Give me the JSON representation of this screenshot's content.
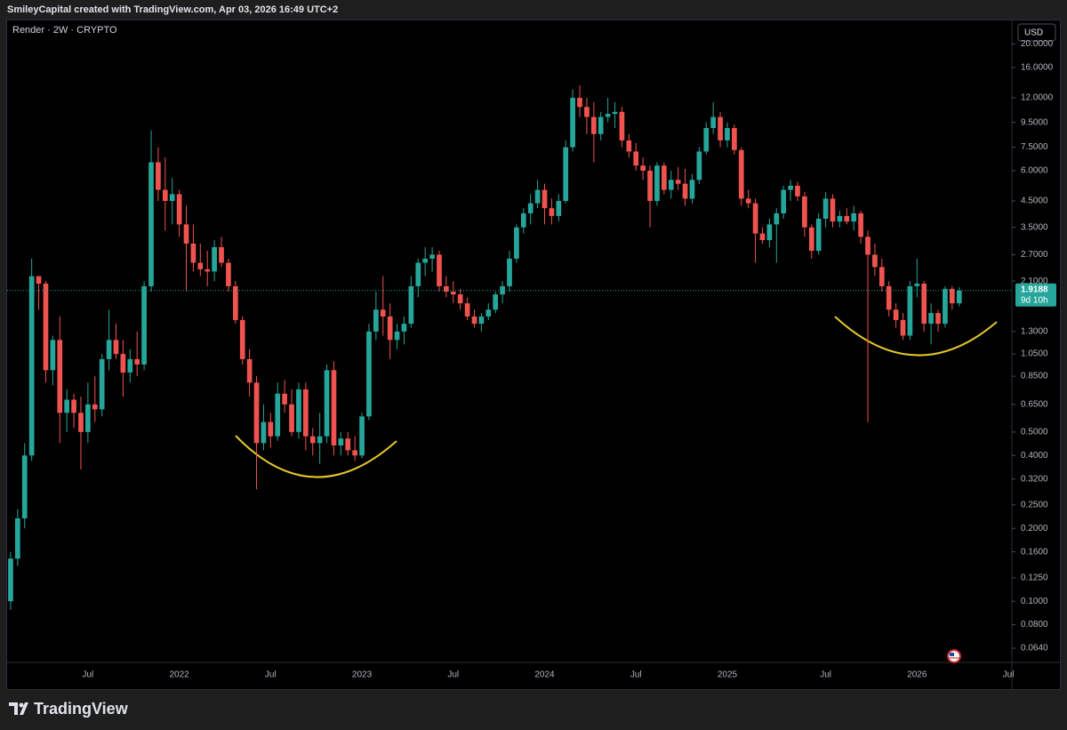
{
  "header": {
    "credit": "SmileyCapital created with TradingView.com, Apr 03, 2026 16:49 UTC+2"
  },
  "currency": "USD",
  "footer": {
    "brand": "TradingView"
  },
  "chart_data": {
    "type": "candlestick",
    "title": "Render · 2W · CRYPTO",
    "log_scale": true,
    "grid": false,
    "up_color": "#26a69a",
    "down_color": "#ef5350",
    "countdown": "9d 10h",
    "ylim": [
      0.0559,
      24.0
    ],
    "yticks": [
      {
        "value": 20,
        "label": "20.0000"
      },
      {
        "value": 16,
        "label": "16.0000"
      },
      {
        "value": 12,
        "label": "12.0000"
      },
      {
        "value": 9.5,
        "label": "9.5000"
      },
      {
        "value": 7.5,
        "label": "7.5000"
      },
      {
        "value": 6,
        "label": "6.0000"
      },
      {
        "value": 4.5,
        "label": "4.5000"
      },
      {
        "value": 3.5,
        "label": "3.5000"
      },
      {
        "value": 2.7,
        "label": "2.7000"
      },
      {
        "value": 2.1,
        "label": "2.1000"
      },
      {
        "value": 1.3,
        "label": "1.3000"
      },
      {
        "value": 1.05,
        "label": "1.0500"
      },
      {
        "value": 0.85,
        "label": "0.8500"
      },
      {
        "value": 0.65,
        "label": "0.6500"
      },
      {
        "value": 0.5,
        "label": "0.5000"
      },
      {
        "value": 0.4,
        "label": "0.4000"
      },
      {
        "value": 0.32,
        "label": "0.3200"
      },
      {
        "value": 0.25,
        "label": "0.2500"
      },
      {
        "value": 0.2,
        "label": "0.2000"
      },
      {
        "value": 0.16,
        "label": "0.1600"
      },
      {
        "value": 0.125,
        "label": "0.1250"
      },
      {
        "value": 0.1,
        "label": "0.1000"
      },
      {
        "value": 0.08,
        "label": "0.0800"
      },
      {
        "value": 0.064,
        "label": "0.0640"
      }
    ],
    "categories": [
      null,
      null,
      null,
      null,
      null,
      null,
      null,
      null,
      null,
      null,
      null,
      "Jul",
      null,
      null,
      null,
      null,
      null,
      null,
      null,
      null,
      null,
      null,
      null,
      null,
      "2022",
      null,
      null,
      null,
      null,
      null,
      null,
      null,
      null,
      null,
      null,
      null,
      null,
      "Jul",
      null,
      null,
      null,
      null,
      null,
      null,
      null,
      null,
      null,
      null,
      null,
      null,
      "2023",
      null,
      null,
      null,
      null,
      null,
      null,
      null,
      null,
      null,
      null,
      null,
      null,
      "Jul",
      null,
      null,
      null,
      null,
      null,
      null,
      null,
      null,
      null,
      null,
      null,
      null,
      "2024",
      null,
      null,
      null,
      null,
      null,
      null,
      null,
      null,
      null,
      null,
      null,
      null,
      "Jul",
      null,
      null,
      null,
      null,
      null,
      null,
      null,
      null,
      null,
      null,
      null,
      null,
      "2025",
      null,
      null,
      null,
      null,
      null,
      null,
      null,
      null,
      null,
      null,
      null,
      null,
      null,
      "Jul",
      null,
      null,
      null,
      null,
      null,
      null,
      null,
      null,
      null,
      null,
      null,
      null,
      "2026",
      null,
      null,
      null,
      null,
      null,
      null,
      null,
      null,
      null,
      null,
      null,
      null,
      "Jul"
    ],
    "open": [
      0.1,
      0.15,
      0.22,
      0.4,
      2.2,
      2.05,
      0.9,
      1.2,
      0.6,
      0.68,
      0.6,
      0.5,
      0.65,
      0.62,
      1.0,
      1.2,
      1.05,
      0.88,
      1.0,
      0.95,
      2.0,
      6.5,
      5.0,
      4.5,
      4.8,
      3.6,
      3.0,
      2.5,
      2.35,
      2.3,
      2.9,
      2.5,
      2.0,
      1.45,
      1.0,
      0.8,
      0.45,
      0.55,
      0.48,
      0.72,
      0.65,
      0.5,
      0.75,
      0.48,
      0.45,
      0.48,
      0.9,
      0.44,
      0.47,
      0.42,
      0.4,
      0.58,
      1.3,
      1.6,
      1.5,
      1.2,
      1.3,
      1.4,
      2.0,
      2.5,
      2.6,
      2.7,
      2.0,
      1.9,
      1.85,
      1.7,
      1.5,
      1.4,
      1.5,
      1.6,
      1.85,
      2.0,
      2.6,
      3.5,
      4.0,
      4.4,
      5.0,
      4.2,
      3.9,
      4.5,
      7.5,
      12.0,
      11.0,
      10.0,
      8.5,
      10.0,
      10.3,
      10.5,
      8.0,
      7.2,
      6.3,
      6.0,
      4.5,
      6.3,
      5.0,
      5.5,
      5.3,
      4.6,
      5.5,
      7.2,
      9.0,
      10.0,
      8.0,
      9.0,
      7.3,
      4.6,
      4.4,
      3.3,
      3.1,
      3.6,
      4.0,
      5.0,
      5.2,
      4.7,
      3.5,
      2.8,
      3.8,
      4.6,
      3.7,
      3.9,
      3.7,
      4.0,
      3.2,
      2.7,
      2.4,
      2.0,
      1.6,
      1.45,
      1.25,
      2.0,
      2.05,
      1.4,
      1.55,
      1.4,
      1.95,
      1.7,
      null,
      null,
      null,
      null,
      null,
      null,
      null
    ],
    "high": [
      0.16,
      0.24,
      0.45,
      2.6,
      2.2,
      2.1,
      1.25,
      1.5,
      0.75,
      0.72,
      0.7,
      0.8,
      0.85,
      1.05,
      1.6,
      1.4,
      1.2,
      1.1,
      1.3,
      2.1,
      8.8,
      7.5,
      6.8,
      5.6,
      5.0,
      4.3,
      3.6,
      3.0,
      2.8,
      3.1,
      3.2,
      2.6,
      2.1,
      1.5,
      1.1,
      0.85,
      0.65,
      0.6,
      0.8,
      0.82,
      0.75,
      0.8,
      0.8,
      0.52,
      0.6,
      0.95,
      0.98,
      0.5,
      0.5,
      0.48,
      0.6,
      1.4,
      1.9,
      2.2,
      1.7,
      1.4,
      1.5,
      2.2,
      2.6,
      2.9,
      2.9,
      2.8,
      2.2,
      2.1,
      1.95,
      1.8,
      1.6,
      1.55,
      1.7,
      1.9,
      2.1,
      2.8,
      3.6,
      4.2,
      4.8,
      5.5,
      5.3,
      4.6,
      4.8,
      8.0,
      13.0,
      13.5,
      12.0,
      11.5,
      10.5,
      12.0,
      11.5,
      11.0,
      8.5,
      7.8,
      6.8,
      6.3,
      6.5,
      6.5,
      6.0,
      6.2,
      6.1,
      5.8,
      7.5,
      9.5,
      11.5,
      10.5,
      9.5,
      9.3,
      7.5,
      5.0,
      4.6,
      3.5,
      3.8,
      4.2,
      5.2,
      5.5,
      5.4,
      4.9,
      3.6,
      4.0,
      4.9,
      4.8,
      4.1,
      4.2,
      4.3,
      4.1,
      3.4,
      3.0,
      2.6,
      2.1,
      1.7,
      1.55,
      2.1,
      2.6,
      2.1,
      1.7,
      1.6,
      2.0,
      2.0,
      1.98,
      null,
      null,
      null,
      null,
      null,
      null,
      null
    ],
    "low": [
      0.092,
      0.14,
      0.2,
      0.38,
      1.6,
      0.8,
      0.78,
      0.45,
      0.5,
      0.52,
      0.35,
      0.45,
      0.55,
      0.58,
      0.9,
      1.0,
      0.7,
      0.8,
      0.85,
      0.9,
      1.9,
      4.5,
      3.4,
      3.6,
      3.2,
      1.9,
      2.3,
      2.2,
      2.0,
      2.1,
      2.4,
      1.9,
      1.4,
      0.95,
      0.7,
      0.29,
      0.42,
      0.43,
      0.46,
      0.6,
      0.48,
      0.47,
      0.42,
      0.4,
      0.37,
      0.45,
      0.4,
      0.4,
      0.4,
      0.38,
      0.39,
      0.56,
      1.2,
      1.25,
      1.0,
      1.1,
      1.15,
      1.35,
      1.8,
      2.2,
      2.3,
      1.9,
      1.8,
      1.7,
      1.6,
      1.45,
      1.35,
      1.3,
      1.45,
      1.55,
      1.7,
      1.9,
      2.5,
      3.3,
      3.6,
      4.2,
      3.6,
      3.6,
      3.7,
      4.4,
      7.2,
      10.0,
      8.5,
      6.5,
      8.0,
      9.5,
      9.0,
      7.5,
      6.8,
      6.0,
      5.5,
      3.5,
      4.3,
      4.8,
      4.6,
      5.0,
      4.3,
      4.4,
      5.3,
      7.0,
      8.5,
      7.5,
      7.5,
      7.0,
      4.3,
      4.2,
      2.5,
      3.0,
      2.9,
      2.5,
      3.8,
      4.5,
      4.5,
      3.2,
      2.6,
      2.7,
      3.5,
      3.5,
      3.5,
      3.6,
      3.4,
      3.0,
      0.55,
      2.2,
      1.9,
      1.5,
      1.35,
      1.2,
      1.2,
      1.8,
      1.3,
      1.15,
      1.3,
      1.35,
      1.6,
      1.65,
      null,
      null,
      null,
      null,
      null,
      null,
      null
    ],
    "close": [
      0.15,
      0.22,
      0.4,
      2.2,
      2.05,
      0.9,
      1.2,
      0.6,
      0.68,
      0.6,
      0.5,
      0.65,
      0.62,
      1.0,
      1.2,
      1.05,
      0.88,
      1.0,
      0.95,
      2.0,
      6.5,
      5.0,
      4.5,
      4.8,
      3.6,
      3.0,
      2.5,
      2.35,
      2.3,
      2.9,
      2.5,
      2.0,
      1.45,
      1.0,
      0.8,
      0.45,
      0.55,
      0.48,
      0.72,
      0.65,
      0.5,
      0.75,
      0.48,
      0.45,
      0.48,
      0.9,
      0.44,
      0.47,
      0.42,
      0.4,
      0.58,
      1.3,
      1.6,
      1.5,
      1.2,
      1.3,
      1.4,
      2.0,
      2.5,
      2.6,
      2.7,
      2.0,
      1.9,
      1.85,
      1.7,
      1.5,
      1.4,
      1.5,
      1.6,
      1.85,
      2.0,
      2.6,
      3.5,
      4.0,
      4.4,
      5.0,
      4.2,
      3.9,
      4.5,
      7.5,
      12.0,
      11.0,
      10.0,
      8.5,
      10.0,
      10.3,
      10.5,
      8.0,
      7.2,
      6.3,
      6.0,
      4.5,
      6.3,
      5.0,
      5.5,
      5.3,
      4.6,
      5.5,
      7.2,
      9.0,
      10.0,
      8.0,
      9.0,
      7.3,
      4.6,
      4.4,
      3.3,
      3.1,
      3.6,
      4.0,
      5.0,
      5.2,
      4.7,
      3.5,
      2.8,
      3.8,
      4.6,
      3.7,
      3.9,
      3.7,
      4.0,
      3.2,
      2.7,
      2.4,
      2.0,
      1.6,
      1.45,
      1.25,
      2.0,
      2.05,
      1.4,
      1.55,
      1.4,
      1.95,
      1.7,
      1.9188,
      null,
      null,
      null,
      null,
      null,
      null,
      null
    ]
  }
}
